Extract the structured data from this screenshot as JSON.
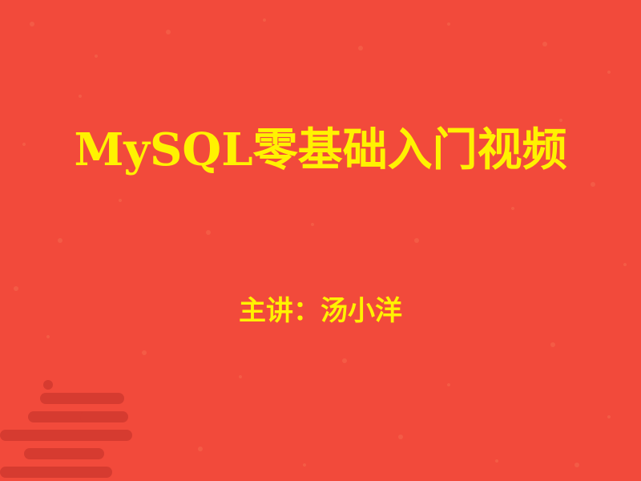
{
  "slide": {
    "title": "MySQL零基础入门视频",
    "subtitle": "主讲：汤小洋",
    "background_color": "#f24a3b",
    "text_color": "#fff200",
    "ornament": "cloud-ornament-icon"
  }
}
